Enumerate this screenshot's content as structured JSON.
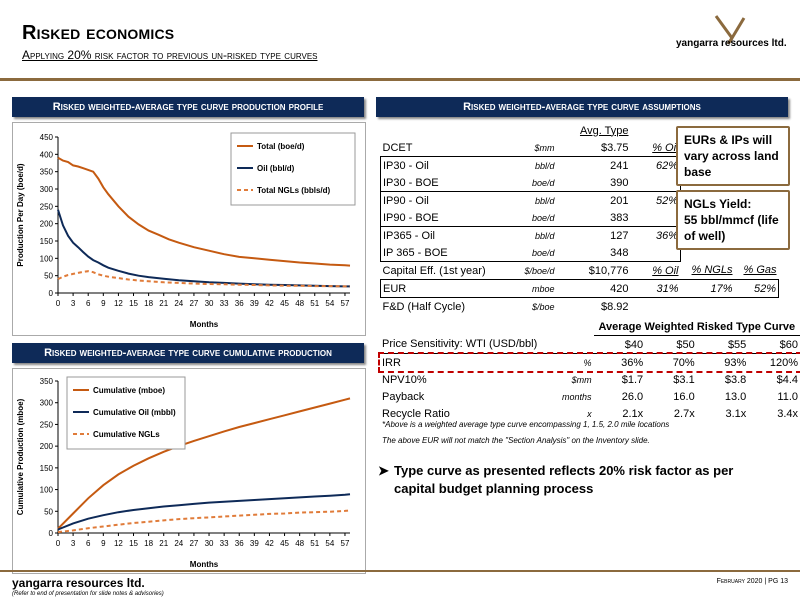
{
  "header": {
    "title": "Risked economics",
    "subtitle": "Applying 20% risk factor to previous un-risked type curves",
    "logo_text": "yangarra resources ltd."
  },
  "sections": {
    "production_profile": "Risked weighted-average type curve production profile",
    "cumulative_production": "Risked weighted-average type curve cumulative production",
    "assumptions": "Risked weighted-average type curve assumptions"
  },
  "assumptions": {
    "header_avg": "Avg. Type",
    "rows": [
      {
        "label": "DCET",
        "unit": "$mm",
        "value": "$3.75",
        "pct": "% Oil",
        "ngl": "",
        "gas": ""
      },
      {
        "label": "IP30 - Oil",
        "unit": "bbl/d",
        "value": "241",
        "pct": "62%",
        "ngl": "",
        "gas": ""
      },
      {
        "label": "IP30 - BOE",
        "unit": "boe/d",
        "value": "390",
        "pct": "",
        "ngl": "",
        "gas": ""
      },
      {
        "label": "IP90 - Oil",
        "unit": "bbl/d",
        "value": "201",
        "pct": "52%",
        "ngl": "",
        "gas": ""
      },
      {
        "label": "IP90 - BOE",
        "unit": "boe/d",
        "value": "383",
        "pct": "",
        "ngl": "",
        "gas": ""
      },
      {
        "label": "IP365 - Oil",
        "unit": "bbl/d",
        "value": "127",
        "pct": "36%",
        "ngl": "",
        "gas": ""
      },
      {
        "label": "IP 365 - BOE",
        "unit": "boe/d",
        "value": "348",
        "pct": "",
        "ngl": "",
        "gas": ""
      },
      {
        "label": "Capital Eff. (1st year)",
        "unit": "$/boe/d",
        "value": "$10,776",
        "pct": "% Oil",
        "ngl": "% NGLs",
        "gas": "% Gas"
      },
      {
        "label": "EUR",
        "unit": "mboe",
        "value": "420",
        "pct": "31%",
        "ngl": "17%",
        "gas": "52%"
      },
      {
        "label": "F&D (Half Cycle)",
        "unit": "$/boe",
        "value": "$8.92",
        "pct": "",
        "ngl": "",
        "gas": ""
      }
    ]
  },
  "callouts": {
    "eurs": "EURs & IPs will vary across land base",
    "ngl_title": "NGLs Yield:",
    "ngl_value": "55 bbl/mmcf (life of well)"
  },
  "price": {
    "header": "Average Weighted Risked Type Curve",
    "label": "Price Sensitivity: WTI (USD/bbl)",
    "prices": [
      "$40",
      "$50",
      "$55",
      "$60"
    ],
    "rows": [
      {
        "label": "IRR",
        "unit": "%",
        "values": [
          "36%",
          "70%",
          "93%",
          "120%"
        ]
      },
      {
        "label": "NPV10%",
        "unit": "$mm",
        "values": [
          "$1.7",
          "$3.1",
          "$3.8",
          "$4.4"
        ]
      },
      {
        "label": "Payback",
        "unit": "months",
        "values": [
          "26.0",
          "16.0",
          "13.0",
          "11.0"
        ]
      },
      {
        "label": "Recycle Ratio",
        "unit": "x",
        "values": [
          "2.1x",
          "2.7x",
          "3.1x",
          "3.4x"
        ]
      }
    ],
    "note1": "*Above is a weighted average type curve encompassing 1, 1.5, 2.0 mile locations",
    "note2": "The above EUR will not match the \"Section Analysis\" on the Inventory slide."
  },
  "bullet": "Type curve as presented reflects 20% risk factor as per capital budget planning process",
  "footer": {
    "company": "yangarra resources ltd.",
    "note": "(Refer to end of presentation for slide notes & advisories)",
    "page": "February 2020 | PG 13"
  },
  "chart_data": [
    {
      "type": "line",
      "ylabel": "Production Per Day (boe/d)",
      "xlabel": "Months",
      "ylim": [
        0,
        450
      ],
      "yticks": [
        0,
        50,
        100,
        150,
        200,
        250,
        300,
        350,
        400,
        450
      ],
      "xticks": [
        0,
        3,
        6,
        9,
        12,
        15,
        18,
        21,
        24,
        27,
        30,
        33,
        36,
        39,
        42,
        45,
        48,
        51,
        54,
        57
      ],
      "xlim": [
        0,
        58
      ],
      "legend_position": "top-right",
      "series": [
        {
          "name": "Total (boe/d)",
          "color": "#c55a11",
          "dash": false,
          "x": [
            0,
            1,
            2,
            3,
            4,
            5,
            6,
            7,
            8,
            9,
            10,
            12,
            14,
            16,
            18,
            20,
            22,
            24,
            27,
            30,
            33,
            36,
            39,
            42,
            45,
            48,
            51,
            54,
            57,
            58
          ],
          "y": [
            390,
            382,
            378,
            368,
            365,
            360,
            355,
            350,
            330,
            305,
            285,
            250,
            220,
            198,
            180,
            168,
            155,
            145,
            132,
            122,
            112,
            104,
            100,
            96,
            92,
            88,
            85,
            82,
            80,
            79
          ]
        },
        {
          "name": "Oil (bbl/d)",
          "color": "#0e2a58",
          "dash": false,
          "x": [
            0,
            1,
            2,
            3,
            4,
            5,
            6,
            7,
            8,
            9,
            10,
            12,
            14,
            16,
            18,
            21,
            24,
            27,
            30,
            33,
            36,
            39,
            42,
            45,
            48,
            51,
            54,
            57,
            58
          ],
          "y": [
            240,
            195,
            165,
            145,
            132,
            118,
            105,
            95,
            88,
            80,
            73,
            64,
            56,
            50,
            46,
            41,
            37,
            34,
            31,
            29,
            27,
            25,
            24,
            23,
            22,
            21,
            20,
            19,
            19
          ]
        },
        {
          "name": "Total NGLs (bbls/d)",
          "color": "#e07b39",
          "dash": true,
          "x": [
            0,
            1,
            2,
            3,
            4,
            5,
            6,
            7,
            8,
            9,
            10,
            12,
            14,
            16,
            18,
            21,
            24,
            27,
            30,
            33,
            36,
            39,
            42,
            45,
            48,
            51,
            54,
            57,
            58
          ],
          "y": [
            40,
            47,
            52,
            55,
            58,
            61,
            63,
            60,
            54,
            50,
            47,
            43,
            39,
            36,
            34,
            31,
            29,
            27,
            26,
            25,
            24,
            23,
            22,
            21,
            21,
            20,
            20,
            19,
            19
          ]
        }
      ]
    },
    {
      "type": "line",
      "ylabel": "Cumulative Production (mboe)",
      "xlabel": "Months",
      "ylim": [
        0,
        350
      ],
      "yticks": [
        0,
        50,
        100,
        150,
        200,
        250,
        300,
        350
      ],
      "xticks": [
        0,
        3,
        6,
        9,
        12,
        15,
        18,
        21,
        24,
        27,
        30,
        33,
        36,
        39,
        42,
        45,
        48,
        51,
        54,
        57
      ],
      "xlim": [
        0,
        58
      ],
      "legend_position": "top-left",
      "series": [
        {
          "name": "Cumulative (mboe)",
          "color": "#c55a11",
          "dash": false,
          "x": [
            0,
            3,
            6,
            9,
            12,
            15,
            18,
            21,
            24,
            27,
            30,
            33,
            36,
            39,
            42,
            45,
            48,
            51,
            54,
            57,
            58
          ],
          "y": [
            10,
            45,
            80,
            110,
            135,
            155,
            172,
            187,
            200,
            212,
            223,
            234,
            244,
            253,
            262,
            271,
            280,
            289,
            298,
            307,
            310
          ]
        },
        {
          "name": "Cumulative Oil (mbbl)",
          "color": "#0e2a58",
          "dash": false,
          "x": [
            0,
            3,
            6,
            9,
            12,
            15,
            18,
            21,
            24,
            27,
            30,
            33,
            36,
            39,
            42,
            45,
            48,
            51,
            54,
            57,
            58
          ],
          "y": [
            8,
            22,
            33,
            41,
            48,
            53,
            57,
            61,
            64,
            67,
            70,
            72,
            74,
            76,
            78,
            80,
            82,
            84,
            86,
            88,
            89
          ]
        },
        {
          "name": "Cumulative NGLs",
          "color": "#e07b39",
          "dash": true,
          "x": [
            0,
            3,
            6,
            9,
            12,
            15,
            18,
            21,
            24,
            27,
            30,
            33,
            36,
            39,
            42,
            45,
            48,
            51,
            54,
            57,
            58
          ],
          "y": [
            2,
            6,
            11,
            15,
            19,
            23,
            26,
            29,
            32,
            34,
            36,
            38,
            40,
            42,
            44,
            45,
            47,
            48,
            49,
            51,
            52
          ]
        }
      ]
    }
  ]
}
